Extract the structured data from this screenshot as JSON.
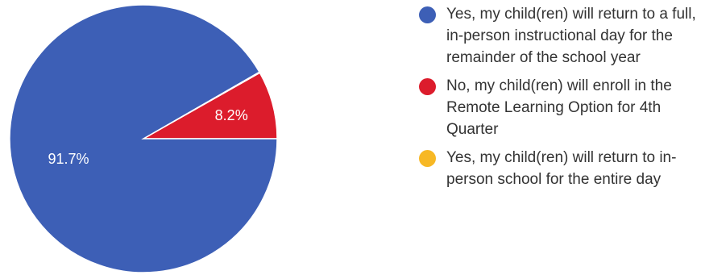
{
  "chart_data": {
    "type": "pie",
    "slices": [
      {
        "label": "Yes, my child(ren) will return to a full, in-person instructional day for the remainder of the school year",
        "value": 91.7,
        "display": "91.7%",
        "color": "#3d5fb6"
      },
      {
        "label": "No, my child(ren) will enroll in the Remote Learning Option for 4th Quarter",
        "value": 8.2,
        "display": "8.2%",
        "color": "#dc1c2c"
      },
      {
        "label": "Yes, my child(ren) will return to in-person school for the entire day",
        "value": 0.1,
        "display": "",
        "color": "#f7b825"
      }
    ],
    "legend_position": "right"
  }
}
